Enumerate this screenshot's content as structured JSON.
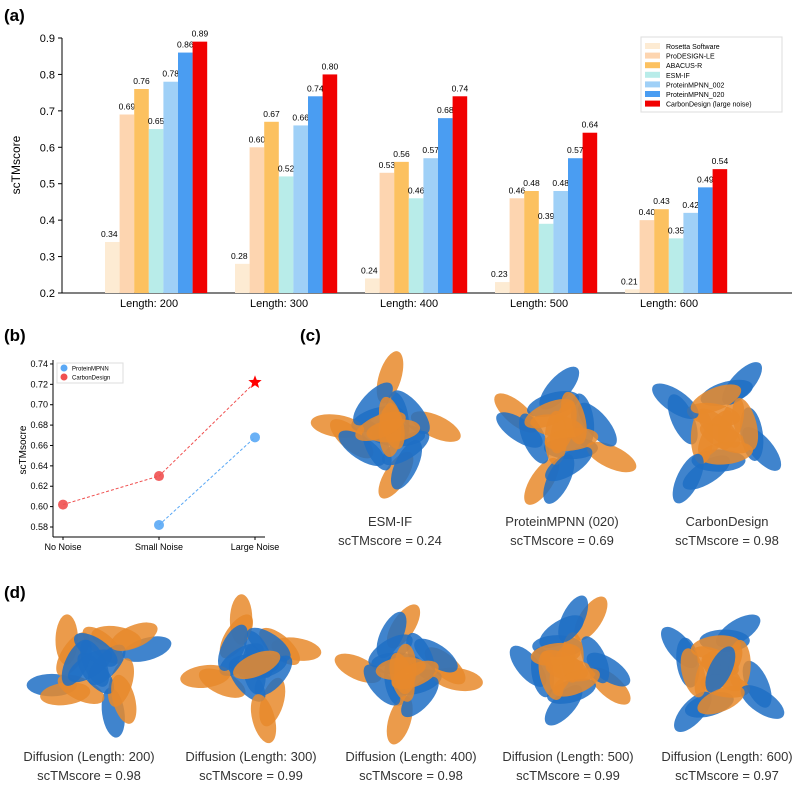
{
  "panels": {
    "a": "(a)",
    "b": "(b)",
    "c": "(c)",
    "d": "(d)"
  },
  "chart_data": [
    {
      "type": "bar",
      "ylabel": "scTMscore",
      "ylim": [
        0.2,
        0.9
      ],
      "yticks": [
        "0.2",
        "0.3",
        "0.4",
        "0.5",
        "0.6",
        "0.7",
        "0.8",
        "0.9"
      ],
      "categories": [
        "Length: 200",
        "Length: 300",
        "Length: 400",
        "Length: 500",
        "Length: 600"
      ],
      "legend_position": "top-right",
      "series": [
        {
          "name": "Rosetta Software",
          "color": "#fdebd3",
          "values": [
            0.34,
            0.28,
            0.24,
            0.23,
            0.21
          ]
        },
        {
          "name": "ProDESIGN-LE",
          "color": "#fdd5b0",
          "values": [
            0.69,
            0.6,
            0.53,
            0.46,
            0.4
          ]
        },
        {
          "name": "ABACUS-R",
          "color": "#fcc160",
          "values": [
            0.76,
            0.67,
            0.56,
            0.48,
            0.43
          ]
        },
        {
          "name": "ESM-IF",
          "color": "#b8ece9",
          "values": [
            0.65,
            0.52,
            0.46,
            0.39,
            0.35
          ]
        },
        {
          "name": "ProteinMPNN_002",
          "color": "#9fd0f7",
          "values": [
            0.78,
            0.66,
            0.57,
            0.48,
            0.42
          ]
        },
        {
          "name": "ProteinMPNN_020",
          "color": "#4a9df2",
          "values": [
            0.86,
            0.74,
            0.68,
            0.57,
            0.49
          ]
        },
        {
          "name": "CarbonDesign (large noise)",
          "color": "#f10000",
          "values": [
            0.89,
            0.8,
            0.74,
            0.64,
            0.54
          ]
        }
      ],
      "labels": [
        [
          "0.34",
          "0.28",
          "0.24",
          "0.23",
          "0.21"
        ],
        [
          "0.69",
          "0.60",
          "0.53",
          "0.46",
          "0.40"
        ],
        [
          "0.76",
          "0.67",
          "0.56",
          "0.48",
          "0.43"
        ],
        [
          "0.65",
          "0.52",
          "0.46",
          "0.39",
          "0.35"
        ],
        [
          "0.78",
          "0.66",
          "0.57",
          "0.48",
          "0.42"
        ],
        [
          "0.86",
          "0.74",
          "0.68",
          "0.57",
          "0.49"
        ],
        [
          "0.89",
          "0.80",
          "0.74",
          "0.64",
          "0.54"
        ]
      ]
    },
    {
      "type": "line",
      "ylabel": "scTMsocre",
      "ylim": [
        0.57,
        0.74
      ],
      "yticks": [
        "0.58",
        "0.60",
        "0.62",
        "0.64",
        "0.66",
        "0.68",
        "0.70",
        "0.72",
        "0.74"
      ],
      "categories": [
        "No Noise",
        "Small Noise",
        "Large Noise"
      ],
      "legend_position": "top-left",
      "series": [
        {
          "name": "ProteinMPNN",
          "color": "#5aa8f5",
          "values": [
            null,
            0.582,
            0.668
          ]
        },
        {
          "name": "CarbonDesign",
          "color": "#f05050",
          "values": [
            0.602,
            0.63,
            0.722
          ],
          "star_last": true
        }
      ]
    }
  ],
  "panel_c": [
    {
      "name": "ESM-IF",
      "score": "scTMscore = 0.24"
    },
    {
      "name": "ProteinMPNN (020)",
      "score": "scTMscore = 0.69"
    },
    {
      "name": "CarbonDesign",
      "score": "scTMscore = 0.98"
    }
  ],
  "panel_d": [
    {
      "name": "Diffusion (Length: 200)",
      "score": "scTMscore = 0.98"
    },
    {
      "name": "Diffusion (Length: 300)",
      "score": "scTMscore = 0.99"
    },
    {
      "name": "Diffusion (Length: 400)",
      "score": "scTMscore = 0.98"
    },
    {
      "name": "Diffusion (Length: 500)",
      "score": "scTMscore = 0.99"
    },
    {
      "name": "Diffusion (Length: 600)",
      "score": "scTMscore = 0.97"
    }
  ],
  "colors": {
    "structure_orange": "#e8892b",
    "structure_blue": "#1f6fc4"
  }
}
